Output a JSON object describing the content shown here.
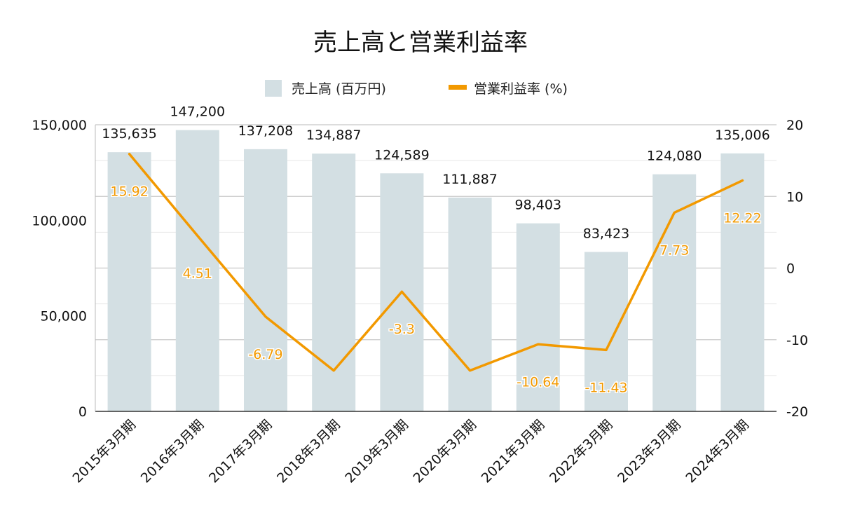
{
  "chart_data": {
    "type": "bar",
    "title": "売上高と営業利益率",
    "categories": [
      "2015年3月期",
      "2016年3月期",
      "2017年3月期",
      "2018年3月期",
      "2019年3月期",
      "2020年3月期",
      "2021年3月期",
      "2022年3月期",
      "2023年3月期",
      "2024年3月期"
    ],
    "series": [
      {
        "name": "売上高 (百万円)",
        "type": "bar",
        "axis": "left",
        "color": "#d3dfe3",
        "values": [
          135635,
          147200,
          137208,
          134887,
          124589,
          111887,
          98403,
          83423,
          124080,
          135006
        ],
        "labels": [
          "135,635",
          "147,200",
          "137,208",
          "134,887",
          "124,589",
          "111,887",
          "98,403",
          "83,423",
          "124,080",
          "135,006"
        ]
      },
      {
        "name": "営業利益率 (%)",
        "type": "line",
        "axis": "right",
        "color": "#f29900",
        "values": [
          15.92,
          4.51,
          -6.79,
          -14.3,
          -3.3,
          -14.3,
          -10.64,
          -11.43,
          7.73,
          12.22
        ],
        "labels": [
          "15.92",
          "4.51",
          "-6.79",
          "",
          "-3.3",
          "",
          "-10.64",
          "-11.43",
          "7.73",
          "12.22"
        ]
      }
    ],
    "y_left": {
      "ylim": [
        0,
        150000
      ],
      "ticks": [
        0,
        50000,
        100000,
        150000
      ],
      "tick_labels": [
        "0",
        "50,000",
        "100,000",
        "150,000"
      ]
    },
    "y_right": {
      "ylim": [
        -20,
        20
      ],
      "ticks": [
        -20,
        -10,
        0,
        10,
        20
      ],
      "tick_labels": [
        "-20",
        "-10",
        "0",
        "10",
        "20"
      ]
    },
    "grid": true,
    "legend_position": "top"
  }
}
